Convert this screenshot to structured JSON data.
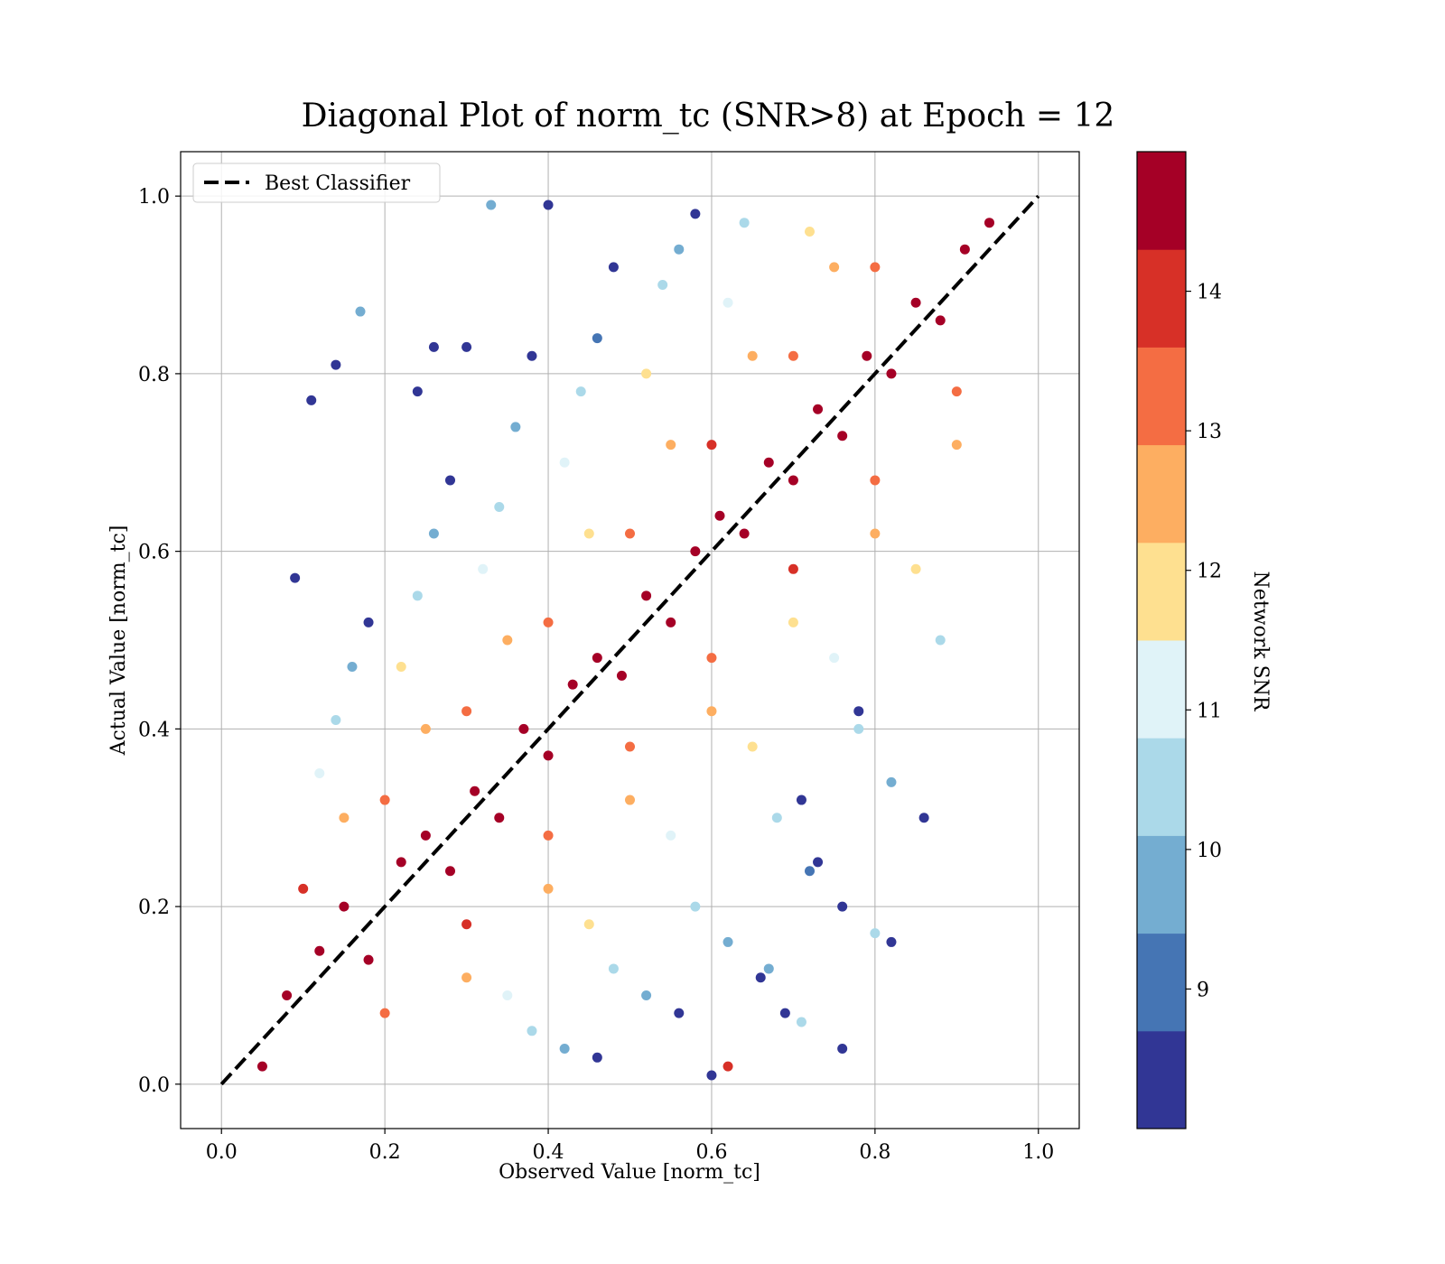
{
  "chart_data": {
    "type": "scatter",
    "title": "Diagonal Plot of norm_tc (SNR>8) at Epoch = 12",
    "xlabel": "Observed Value [norm_tc]",
    "ylabel": "Actual Value [norm_tc]",
    "xlim": [
      -0.05,
      1.05
    ],
    "ylim": [
      -0.05,
      1.05
    ],
    "xticks": [
      0.0,
      0.2,
      0.4,
      0.6,
      0.8,
      1.0
    ],
    "yticks": [
      0.0,
      0.2,
      0.4,
      0.6,
      0.8,
      1.0
    ],
    "xtick_labels": [
      "0.0",
      "0.2",
      "0.4",
      "0.6",
      "0.8",
      "1.0"
    ],
    "ytick_labels": [
      "0.0",
      "0.2",
      "0.4",
      "0.6",
      "0.8",
      "1.0"
    ],
    "grid": true,
    "legend": {
      "position": "top-left",
      "entries": [
        {
          "label": "Best Classifier",
          "style": "dashed",
          "color": "#000000"
        }
      ]
    },
    "reference_line": {
      "name": "Best Classifier",
      "x": [
        0.0,
        1.0
      ],
      "y": [
        0.0,
        1.0
      ]
    },
    "colorbar": {
      "label": "Network SNR",
      "min": 8.0,
      "max": 15.0,
      "ticks": [
        9,
        10,
        11,
        12,
        13,
        14
      ],
      "tick_labels": [
        "9",
        "10",
        "11",
        "12",
        "13",
        "14"
      ],
      "colors": [
        "#313695",
        "#4575b4",
        "#74add1",
        "#abd9e9",
        "#e0f3f8",
        "#fee090",
        "#fdae61",
        "#f46d43",
        "#d73027",
        "#a50026"
      ]
    },
    "scatter_description": {
      "x_range": [
        0.03,
        0.97
      ],
      "y_range": [
        0.0,
        1.0
      ],
      "color_variable": "Network SNR",
      "pattern": "dense diagonal band around y = x, high SNR near diagonal, lower SNR scattered further away"
    },
    "points": [
      [
        0.05,
        0.02,
        14.8
      ],
      [
        0.08,
        0.1,
        14.9
      ],
      [
        0.12,
        0.15,
        14.6
      ],
      [
        0.15,
        0.2,
        14.9
      ],
      [
        0.18,
        0.14,
        14.7
      ],
      [
        0.22,
        0.25,
        14.9
      ],
      [
        0.25,
        0.28,
        14.5
      ],
      [
        0.28,
        0.24,
        14.9
      ],
      [
        0.31,
        0.33,
        14.8
      ],
      [
        0.34,
        0.3,
        14.9
      ],
      [
        0.37,
        0.4,
        14.7
      ],
      [
        0.4,
        0.37,
        14.9
      ],
      [
        0.43,
        0.45,
        14.8
      ],
      [
        0.46,
        0.48,
        14.9
      ],
      [
        0.49,
        0.46,
        14.6
      ],
      [
        0.52,
        0.55,
        14.9
      ],
      [
        0.55,
        0.52,
        14.8
      ],
      [
        0.58,
        0.6,
        14.9
      ],
      [
        0.61,
        0.64,
        14.7
      ],
      [
        0.64,
        0.62,
        14.9
      ],
      [
        0.67,
        0.7,
        14.8
      ],
      [
        0.7,
        0.68,
        14.9
      ],
      [
        0.73,
        0.76,
        14.6
      ],
      [
        0.76,
        0.73,
        14.9
      ],
      [
        0.79,
        0.82,
        14.8
      ],
      [
        0.82,
        0.8,
        14.9
      ],
      [
        0.85,
        0.88,
        14.7
      ],
      [
        0.88,
        0.86,
        14.9
      ],
      [
        0.91,
        0.94,
        14.8
      ],
      [
        0.94,
        0.97,
        14.9
      ],
      [
        0.1,
        0.22,
        13.8
      ],
      [
        0.2,
        0.32,
        13.5
      ],
      [
        0.3,
        0.42,
        13.2
      ],
      [
        0.4,
        0.52,
        13.6
      ],
      [
        0.5,
        0.62,
        13.4
      ],
      [
        0.6,
        0.72,
        13.7
      ],
      [
        0.7,
        0.82,
        13.3
      ],
      [
        0.8,
        0.92,
        13.6
      ],
      [
        0.2,
        0.08,
        13.5
      ],
      [
        0.3,
        0.18,
        13.7
      ],
      [
        0.4,
        0.28,
        13.2
      ],
      [
        0.5,
        0.38,
        13.6
      ],
      [
        0.6,
        0.48,
        13.4
      ],
      [
        0.7,
        0.58,
        13.8
      ],
      [
        0.8,
        0.68,
        13.3
      ],
      [
        0.9,
        0.78,
        13.5
      ],
      [
        0.15,
        0.3,
        12.5
      ],
      [
        0.25,
        0.4,
        12.3
      ],
      [
        0.35,
        0.5,
        12.6
      ],
      [
        0.45,
        0.62,
        12.2
      ],
      [
        0.55,
        0.72,
        12.7
      ],
      [
        0.65,
        0.82,
        12.4
      ],
      [
        0.75,
        0.92,
        12.5
      ],
      [
        0.3,
        0.12,
        12.6
      ],
      [
        0.4,
        0.22,
        12.3
      ],
      [
        0.5,
        0.32,
        12.5
      ],
      [
        0.6,
        0.42,
        12.8
      ],
      [
        0.7,
        0.52,
        12.2
      ],
      [
        0.8,
        0.62,
        12.6
      ],
      [
        0.9,
        0.72,
        12.4
      ],
      [
        0.12,
        0.35,
        11.2
      ],
      [
        0.22,
        0.47,
        11.6
      ],
      [
        0.32,
        0.58,
        11.4
      ],
      [
        0.42,
        0.7,
        11.3
      ],
      [
        0.52,
        0.8,
        11.7
      ],
      [
        0.62,
        0.88,
        11.2
      ],
      [
        0.72,
        0.96,
        11.5
      ],
      [
        0.35,
        0.1,
        11.4
      ],
      [
        0.45,
        0.18,
        11.6
      ],
      [
        0.55,
        0.28,
        11.3
      ],
      [
        0.65,
        0.38,
        11.5
      ],
      [
        0.75,
        0.48,
        11.2
      ],
      [
        0.85,
        0.58,
        11.7
      ],
      [
        0.14,
        0.41,
        10.5
      ],
      [
        0.24,
        0.55,
        10.3
      ],
      [
        0.34,
        0.65,
        10.6
      ],
      [
        0.44,
        0.78,
        10.4
      ],
      [
        0.54,
        0.9,
        10.2
      ],
      [
        0.64,
        0.97,
        10.6
      ],
      [
        0.38,
        0.06,
        10.4
      ],
      [
        0.48,
        0.13,
        10.5
      ],
      [
        0.58,
        0.2,
        10.3
      ],
      [
        0.68,
        0.3,
        10.6
      ],
      [
        0.78,
        0.4,
        10.2
      ],
      [
        0.88,
        0.5,
        10.5
      ],
      [
        0.16,
        0.47,
        9.6
      ],
      [
        0.26,
        0.62,
        9.4
      ],
      [
        0.36,
        0.74,
        9.5
      ],
      [
        0.46,
        0.84,
        9.3
      ],
      [
        0.56,
        0.94,
        9.7
      ],
      [
        0.42,
        0.04,
        9.5
      ],
      [
        0.52,
        0.1,
        9.4
      ],
      [
        0.62,
        0.16,
        9.6
      ],
      [
        0.72,
        0.24,
        9.3
      ],
      [
        0.82,
        0.34,
        9.5
      ],
      [
        0.18,
        0.52,
        8.5
      ],
      [
        0.28,
        0.68,
        8.3
      ],
      [
        0.38,
        0.82,
        8.6
      ],
      [
        0.48,
        0.92,
        8.4
      ],
      [
        0.58,
        0.98,
        8.5
      ],
      [
        0.46,
        0.03,
        8.4
      ],
      [
        0.56,
        0.08,
        8.6
      ],
      [
        0.66,
        0.12,
        8.3
      ],
      [
        0.76,
        0.2,
        8.5
      ],
      [
        0.86,
        0.3,
        8.4
      ],
      [
        0.09,
        0.57,
        8.4
      ],
      [
        0.11,
        0.77,
        8.3
      ],
      [
        0.14,
        0.81,
        8.5
      ],
      [
        0.17,
        0.87,
        9.4
      ],
      [
        0.24,
        0.78,
        8.5
      ],
      [
        0.26,
        0.83,
        8.4
      ],
      [
        0.3,
        0.83,
        8.6
      ],
      [
        0.33,
        0.99,
        9.5
      ],
      [
        0.4,
        0.99,
        8.4
      ],
      [
        0.71,
        0.32,
        8.5
      ],
      [
        0.73,
        0.25,
        8.3
      ],
      [
        0.78,
        0.42,
        8.6
      ],
      [
        0.82,
        0.16,
        8.4
      ],
      [
        0.76,
        0.04,
        8.5
      ],
      [
        0.67,
        0.13,
        9.4
      ],
      [
        0.69,
        0.08,
        8.4
      ],
      [
        0.6,
        0.01,
        8.3
      ],
      [
        0.62,
        0.02,
        13.8
      ],
      [
        0.8,
        0.17,
        10.2
      ],
      [
        0.71,
        0.07,
        10.4
      ]
    ]
  }
}
